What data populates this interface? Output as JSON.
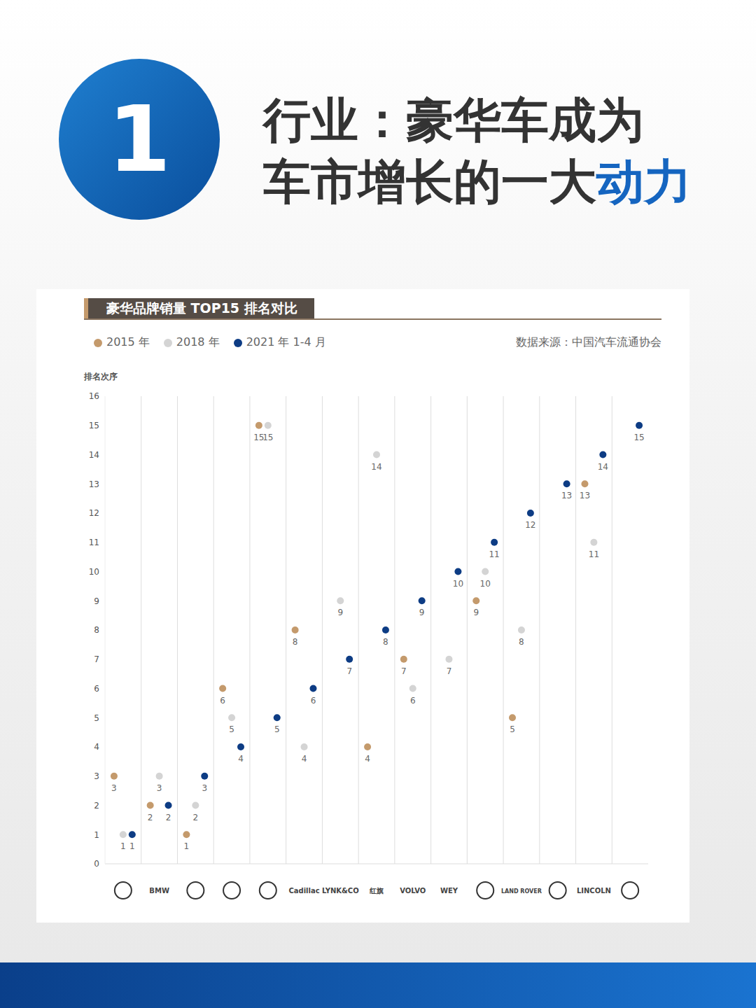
{
  "header": {
    "badge": "1",
    "line1": "行业：豪华车成为",
    "line2": "车市增长的一大",
    "highlight": "动力"
  },
  "chart_data": {
    "type": "scatter",
    "title": "豪华品牌销量 TOP15 排名对比",
    "source": "数据来源：中国汽车流通协会",
    "y_label": "排名次序",
    "categories": [
      null,
      "BMW",
      null,
      null,
      null,
      "Cadillac",
      "LYNK&CO",
      "红旗",
      "VOLVO",
      "WEY",
      null,
      "LAND ROVER",
      null,
      "LINCOLN",
      null
    ],
    "series": [
      {
        "name": "2015 年",
        "color": "#c49a6c",
        "values": [
          3,
          2,
          1,
          6,
          15,
          8,
          null,
          4,
          7,
          null,
          9,
          5,
          null,
          13,
          null
        ]
      },
      {
        "name": "2018 年",
        "color": "#d4d4d4",
        "values": [
          1,
          3,
          2,
          5,
          15,
          4,
          9,
          14,
          6,
          7,
          10,
          8,
          null,
          11,
          null
        ]
      },
      {
        "name": "2021 年 1-4 月",
        "color": "#0d3c84",
        "values": [
          1,
          2,
          3,
          4,
          5,
          6,
          7,
          8,
          9,
          10,
          11,
          12,
          13,
          14,
          15
        ]
      }
    ],
    "ylim": [
      0,
      16
    ],
    "yticks": [
      0,
      1,
      2,
      3,
      4,
      5,
      6,
      7,
      8,
      9,
      10,
      11,
      12,
      13,
      14,
      15,
      16
    ],
    "grid": true,
    "legend": "top-left",
    "data_labels": true,
    "marker": "circle"
  }
}
